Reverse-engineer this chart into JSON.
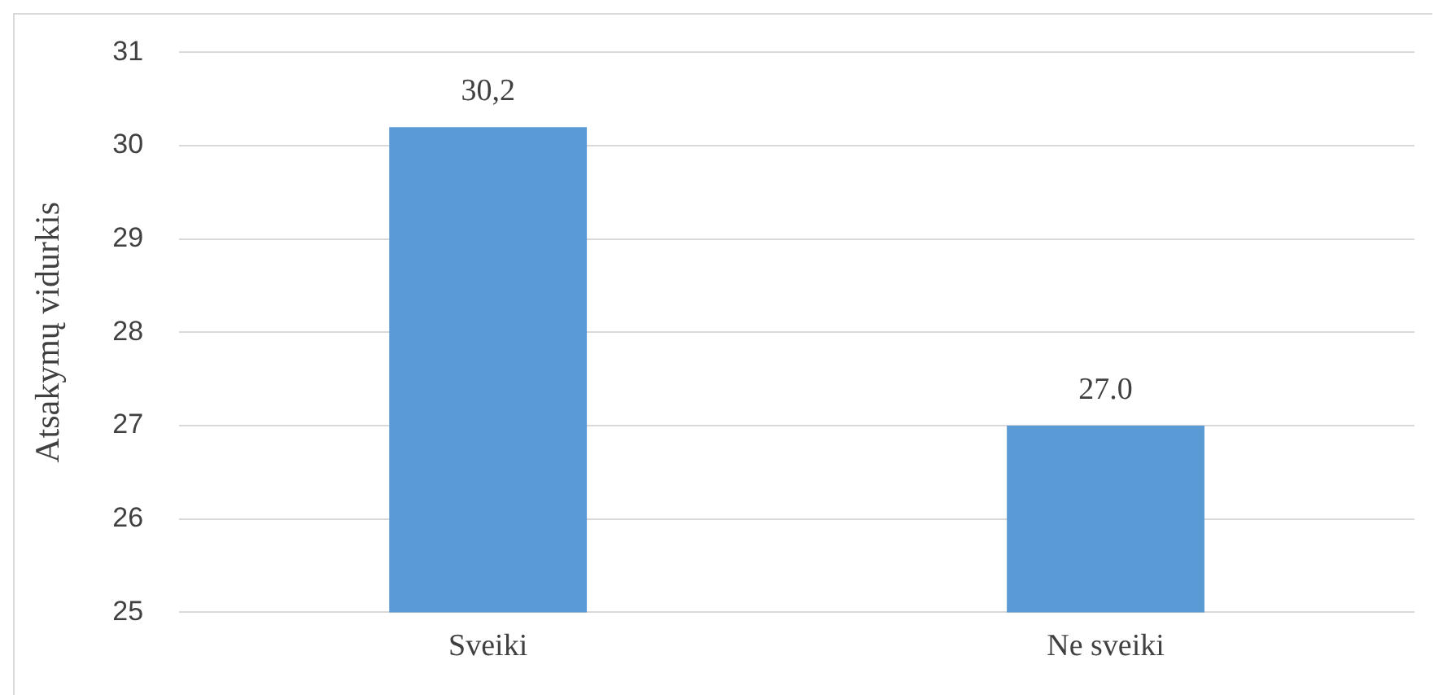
{
  "chart_data": {
    "type": "bar",
    "ylabel": "Atsakymų vidurkis",
    "categories": [
      "Sveiki",
      "Ne sveiki"
    ],
    "values": [
      30.2,
      27.0
    ],
    "value_labels": [
      "30,2",
      "27.0"
    ],
    "color": "#5b9bd5",
    "ylim": [
      25,
      31
    ],
    "yticks": [
      25,
      26,
      27,
      28,
      29,
      30,
      31
    ],
    "grid": "y",
    "legend": false
  }
}
